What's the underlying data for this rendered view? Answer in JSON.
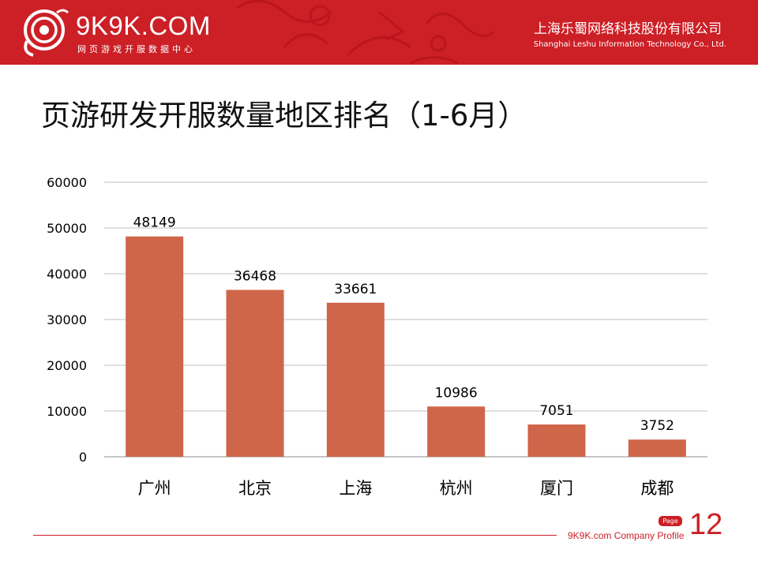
{
  "header": {
    "logo_text": "9K9K.COM",
    "logo_subtitle": "网页游戏开服数据中心",
    "company_cn": "上海乐蜀网络科技股份有限公司",
    "company_en": "Shanghai Leshu Information Technology Co., Ltd.",
    "accent_color": "#cc1f26"
  },
  "slide": {
    "title": "页游研发开服数量地区排名（1-6月）"
  },
  "footer": {
    "profile_text": "9K9K.com Company Profile",
    "page_label": "Page",
    "page_number": "12"
  },
  "chart_data": {
    "type": "bar",
    "title": "",
    "categories": [
      "广州",
      "北京",
      "上海",
      "杭州",
      "厦门",
      "成都"
    ],
    "values": [
      48149,
      36468,
      33661,
      10986,
      7051,
      3752
    ],
    "ylim": [
      0,
      60000
    ],
    "yticks": [
      0,
      10000,
      20000,
      30000,
      40000,
      50000,
      60000
    ],
    "xlabel": "",
    "ylabel": "",
    "grid": true,
    "bar_color": "#cf6549",
    "data_labels": true
  }
}
